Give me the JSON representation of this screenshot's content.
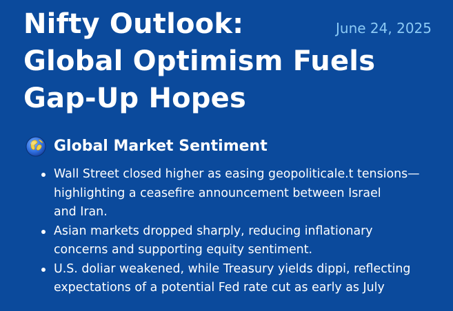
{
  "header": {
    "title_lines": [
      "Nifty Outlook:",
      "Global Optimism Fuels",
      "Gap-Up Hopes"
    ],
    "date": "June 24, 2025"
  },
  "section": {
    "icon": "globe-icon",
    "title": "Global Market Sentiment",
    "bullets": [
      {
        "lines": [
          "Wall Street closed higher as easing geopoliticale.t tensions—",
          "highlighting a ceasefire announcement between Israel",
          "and Iran."
        ]
      },
      {
        "lines": [
          "Asian markets dropped sharply, reducing inflationary",
          "concerns and supporting equity sentiment."
        ]
      },
      {
        "lines": [
          "U.S. doliar weakened, while Treasury yields dippi, reflecting",
          "expectations of a potential Fed rate cut as early as July"
        ]
      }
    ]
  },
  "colors": {
    "background": "#0b4a9c",
    "title": "#ffffff",
    "date": "#8ccaf5"
  }
}
